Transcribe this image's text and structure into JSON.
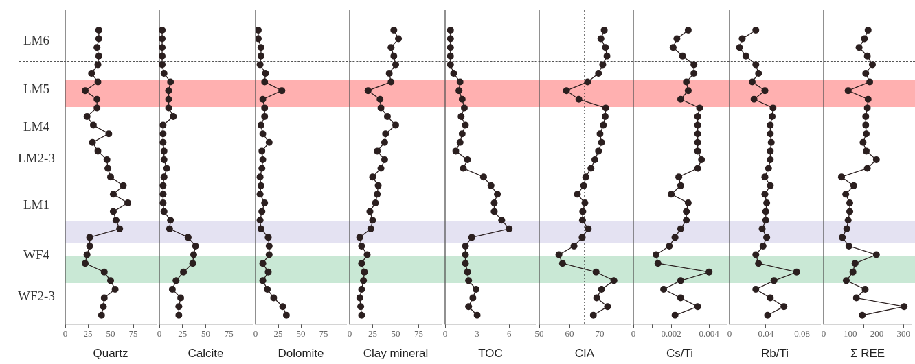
{
  "chart_data": [
    {
      "type": "line",
      "orientation": "horizontal",
      "xlabel": "Quartz",
      "categories": [
        null,
        null,
        null,
        null,
        null,
        null,
        null,
        null,
        null,
        null,
        null,
        null,
        null,
        null,
        null,
        null,
        null,
        null,
        null,
        null,
        null,
        null,
        null,
        null,
        null,
        null,
        null,
        null,
        null,
        null,
        null,
        null,
        null,
        null
      ],
      "values": [
        37,
        37,
        35,
        37,
        36,
        29,
        36,
        22,
        35,
        35,
        24,
        31,
        48,
        30,
        36,
        46,
        47,
        50,
        64,
        53,
        69,
        53,
        56,
        60,
        27,
        27,
        24,
        22,
        43,
        50,
        55,
        43,
        42,
        40
      ],
      "color": "#2b1f1f",
      "xlim": [
        0,
        100
      ],
      "xticks": [
        0,
        25,
        50,
        75
      ],
      "marker": "circle",
      "tick_labels": "x",
      "annotations": [
        "LM6",
        "LM5",
        "LM4",
        "LM2-3",
        "LM1",
        "WF4",
        "WF2-3"
      ]
    },
    {
      "type": "line",
      "orientation": "horizontal",
      "xlabel": "Calcite",
      "categories": [
        null,
        null,
        null,
        null,
        null,
        null,
        null,
        null,
        null,
        null,
        null,
        null,
        null,
        null,
        null,
        null,
        null,
        null,
        null,
        null,
        null,
        null,
        null,
        null,
        null,
        null,
        null,
        null,
        null,
        null,
        null,
        null,
        null,
        null
      ],
      "values": [
        3,
        3,
        3,
        3,
        3,
        5,
        12,
        10,
        10,
        10,
        15,
        4,
        4,
        4,
        5,
        5,
        8,
        5,
        4,
        4,
        4,
        5,
        12,
        11,
        31,
        39,
        37,
        36,
        26,
        18,
        14,
        23,
        21,
        21
      ],
      "color": "#2b1f1f",
      "xlim": [
        0,
        100
      ],
      "xticks": [
        0,
        25,
        50,
        75
      ],
      "marker": "circle",
      "tick_labels": "x"
    },
    {
      "type": "line",
      "orientation": "horizontal",
      "xlabel": "Dolomite",
      "categories": [
        null,
        null,
        null,
        null,
        null,
        null,
        null,
        null,
        null,
        null,
        null,
        null,
        null,
        null,
        null,
        null,
        null,
        null,
        null,
        null,
        null,
        null,
        null,
        null,
        null,
        null,
        null,
        null,
        null,
        null,
        null,
        null,
        null,
        null
      ],
      "values": [
        3,
        3,
        6,
        6,
        5,
        11,
        10,
        29,
        8,
        10,
        10,
        6,
        8,
        15,
        7,
        8,
        7,
        5,
        6,
        5,
        10,
        7,
        5,
        6,
        14,
        15,
        15,
        8,
        14,
        8,
        13,
        20,
        30,
        34
      ],
      "color": "#2b1f1f",
      "xlim": [
        0,
        100
      ],
      "xticks": [
        0,
        25,
        50,
        75
      ],
      "marker": "circle",
      "tick_labels": "x"
    },
    {
      "type": "line",
      "orientation": "horizontal",
      "xlabel": "Clay mineral",
      "categories": [
        null,
        null,
        null,
        null,
        null,
        null,
        null,
        null,
        null,
        null,
        null,
        null,
        null,
        null,
        null,
        null,
        null,
        null,
        null,
        null,
        null,
        null,
        null,
        null,
        null,
        null,
        null,
        null,
        null,
        null,
        null,
        null,
        null,
        null
      ],
      "values": [
        48,
        53,
        45,
        48,
        50,
        43,
        45,
        20,
        33,
        34,
        41,
        50,
        39,
        38,
        30,
        38,
        34,
        25,
        31,
        30,
        28,
        22,
        25,
        23,
        11,
        13,
        19,
        13,
        16,
        15,
        13,
        11,
        12,
        13
      ],
      "color": "#2b1f1f",
      "xlim": [
        0,
        100
      ],
      "xticks": [
        0,
        25,
        50,
        75
      ],
      "marker": "circle",
      "tick_labels": "x"
    },
    {
      "type": "line",
      "orientation": "horizontal",
      "xlabel": "TOC",
      "categories": [
        null,
        null,
        null,
        null,
        null,
        null,
        null,
        null,
        null,
        null,
        null,
        null,
        null,
        null,
        null,
        null,
        null,
        null,
        null,
        null,
        null,
        null,
        null,
        null,
        null,
        null,
        null,
        null,
        null,
        null,
        null,
        null,
        null,
        null
      ],
      "values": [
        0.5,
        0.5,
        0.5,
        0.5,
        0.5,
        0.8,
        1.4,
        1.3,
        1.6,
        1.8,
        1.5,
        1.9,
        1.6,
        1.4,
        1.0,
        2.1,
        1.7,
        3.6,
        4.3,
        4.9,
        4.6,
        4.6,
        5.3,
        6.0,
        2.5,
        1.9,
        1.9,
        1.9,
        2.1,
        2.2,
        2.9,
        2.6,
        2.2,
        3.0
      ],
      "color": "#2b1f1f",
      "xlim": [
        0,
        8.5
      ],
      "xticks": [
        0,
        3,
        6
      ],
      "marker": "circle",
      "tick_labels": "x"
    },
    {
      "type": "line",
      "orientation": "horizontal",
      "xlabel": "CIA",
      "categories": [
        null,
        null,
        null,
        null,
        null,
        null,
        null,
        null,
        null,
        null,
        null,
        null,
        null,
        null,
        null,
        null,
        null,
        null,
        null,
        null,
        null,
        null,
        null,
        null,
        null,
        null,
        null,
        null,
        null,
        null,
        null,
        null,
        null,
        null
      ],
      "values": [
        71.5,
        70.4,
        71.9,
        72.4,
        71.0,
        69.6,
        66.0,
        59.0,
        63.1,
        72.0,
        71.8,
        71.2,
        70.1,
        70.6,
        69.6,
        68.4,
        67.1,
        65.4,
        64.7,
        62.6,
        65.1,
        64.4,
        64.3,
        66.2,
        64.2,
        61.5,
        56.5,
        57.7,
        68.8,
        74.7,
        70.6,
        69.0,
        72.6,
        67.9
      ],
      "color": "#2b1f1f",
      "xlim": [
        50,
        80
      ],
      "xticks": [
        50,
        60,
        70
      ],
      "marker": "circle",
      "tick_labels": "x",
      "ref_lines": [
        {
          "axis": "x",
          "value": 65,
          "line_style": "dotted",
          "color": "#333333"
        }
      ]
    },
    {
      "type": "line",
      "orientation": "horizontal",
      "xlabel": "Cs/Ti",
      "categories": [
        null,
        null,
        null,
        null,
        null,
        null,
        null,
        null,
        null,
        null,
        null,
        null,
        null,
        null,
        null,
        null,
        null,
        null,
        null,
        null,
        null,
        null,
        null,
        null,
        null,
        null,
        null,
        null,
        null,
        null,
        null,
        null,
        null,
        null
      ],
      "values": [
        0.0029,
        0.0023,
        0.0021,
        0.0026,
        0.0032,
        0.0032,
        0.0028,
        0.0029,
        0.0025,
        0.0035,
        0.0034,
        0.0034,
        0.0034,
        0.0034,
        0.0034,
        0.0036,
        0.0034,
        0.0024,
        0.0025,
        0.002,
        0.0029,
        0.0028,
        0.0028,
        0.0025,
        0.0022,
        0.0019,
        0.0012,
        0.0013,
        0.004,
        0.0025,
        0.0016,
        0.0025,
        0.0034,
        0.0022
      ],
      "color": "#2b1f1f",
      "xlim": [
        0,
        0.0049
      ],
      "xticks": [
        0,
        {
          "value": 0.001,
          "label": null
        },
        0.002,
        {
          "value": 0.003,
          "label": null
        },
        0.004
      ],
      "marker": "circle",
      "tick_labels": "x"
    },
    {
      "type": "line",
      "orientation": "horizontal",
      "xlabel": "Rb/Ti",
      "categories": [
        null,
        null,
        null,
        null,
        null,
        null,
        null,
        null,
        null,
        null,
        null,
        null,
        null,
        null,
        null,
        null,
        null,
        null,
        null,
        null,
        null,
        null,
        null,
        null,
        null,
        null,
        null,
        null,
        null,
        null,
        null,
        null,
        null,
        null
      ],
      "values": [
        0.029,
        0.014,
        0.011,
        0.018,
        0.029,
        0.032,
        0.025,
        0.039,
        0.027,
        0.048,
        0.047,
        0.045,
        0.045,
        0.046,
        0.045,
        0.045,
        0.043,
        0.039,
        0.045,
        0.039,
        0.041,
        0.04,
        0.04,
        0.036,
        0.041,
        0.037,
        0.029,
        0.032,
        0.074,
        0.049,
        0.029,
        0.045,
        0.06,
        0.042
      ],
      "color": "#2b1f1f",
      "xlim": [
        0,
        0.1
      ],
      "xticks": [
        0,
        0.04,
        0.08
      ],
      "marker": "circle",
      "tick_labels": "x"
    },
    {
      "type": "line",
      "orientation": "horizontal",
      "xlabel": "Σ REE",
      "categories": [
        null,
        null,
        null,
        null,
        null,
        null,
        null,
        null,
        null,
        null,
        null,
        null,
        null,
        null,
        null,
        null,
        null,
        null,
        null,
        null,
        null,
        null,
        null,
        null,
        null,
        null,
        null,
        null,
        null,
        null,
        null,
        null,
        null,
        null
      ],
      "values": [
        167,
        153,
        133,
        164,
        183,
        158,
        173,
        92,
        167,
        164,
        158,
        158,
        160,
        148,
        160,
        198,
        164,
        67,
        113,
        83,
        98,
        98,
        92,
        87,
        70,
        95,
        198,
        118,
        110,
        85,
        156,
        123,
        302,
        145
      ],
      "color": "#2b1f1f",
      "xlim": [
        0,
        330
      ],
      "xticks": [
        0,
        {
          "value": 50,
          "label": null
        },
        100,
        {
          "value": 150,
          "label": null
        },
        200,
        {
          "value": 250,
          "label": null
        },
        300
      ],
      "marker": "circle",
      "tick_labels": "x"
    }
  ]
}
